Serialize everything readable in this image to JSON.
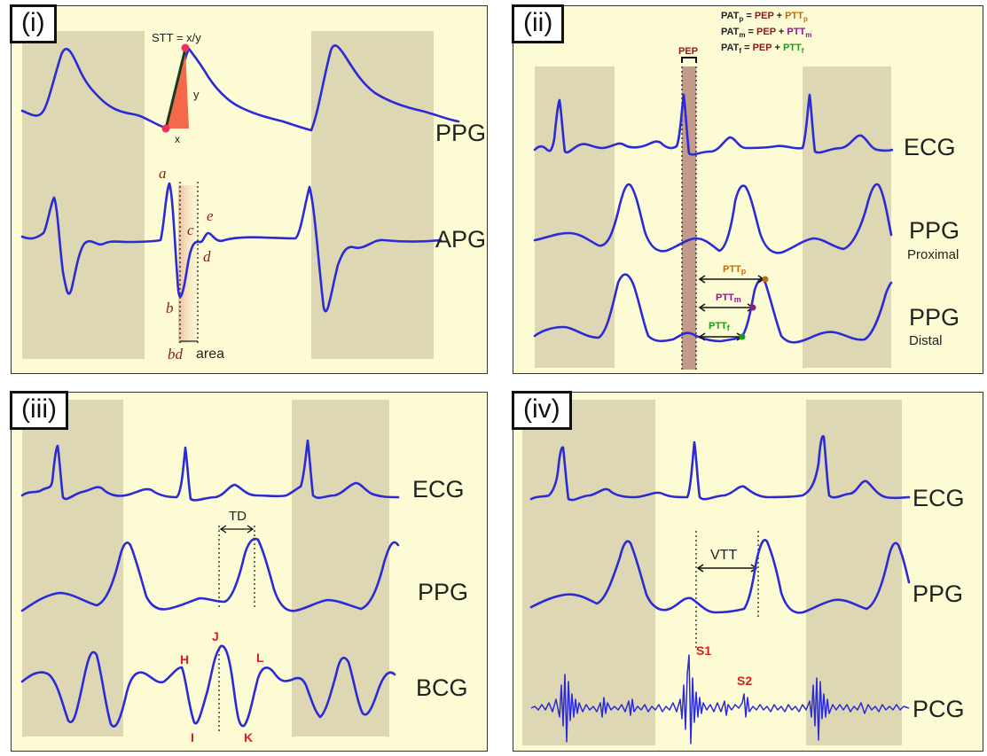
{
  "panels": {
    "p1": {
      "label": "(i)",
      "stt": "STT = x/y",
      "y_label": "y",
      "x_label": "x",
      "signals": [
        "PPG",
        "APG"
      ],
      "points": [
        "a",
        "b",
        "c",
        "d",
        "e"
      ],
      "bd": "bd",
      "area": "area"
    },
    "p2": {
      "label": "(ii)",
      "equations": [
        {
          "pat": "PAT",
          "sub": "p",
          "pep": "PEP",
          "ptt": "PTT"
        },
        {
          "pat": "PAT",
          "sub": "m",
          "pep": "PEP",
          "ptt": "PTT"
        },
        {
          "pat": "PAT",
          "sub": "f",
          "pep": "PEP",
          "ptt": "PTT"
        }
      ],
      "pep": "PEP",
      "signals": [
        "ECG",
        "PPG",
        "PPG"
      ],
      "sub_labels": [
        "Proximal",
        "Distal"
      ],
      "ptt": [
        "PTT",
        "PTT",
        "PTT"
      ],
      "ptt_subs": [
        "p",
        "m",
        "f"
      ]
    },
    "p3": {
      "label": "(iii)",
      "signals": [
        "ECG",
        "PPG",
        "BCG"
      ],
      "td": "TD",
      "waves": [
        "H",
        "I",
        "J",
        "K",
        "L"
      ]
    },
    "p4": {
      "label": "(iv)",
      "signals": [
        "ECG",
        "PPG",
        "PCG"
      ],
      "vtt": "VTT",
      "sounds": [
        "S1",
        "S2"
      ]
    }
  },
  "colors": {
    "signal": "#2a2ad6",
    "panel_bg": "#fdfbd4",
    "shade": "#ddd8b3",
    "pep_band": "#c49a8a",
    "pep_text": "#8b1a1a",
    "ptt_p": "#c46a10",
    "ptt_m": "#8a1a8a",
    "ptt_f": "#1a9a1a",
    "wave_labels": "#d42020"
  }
}
